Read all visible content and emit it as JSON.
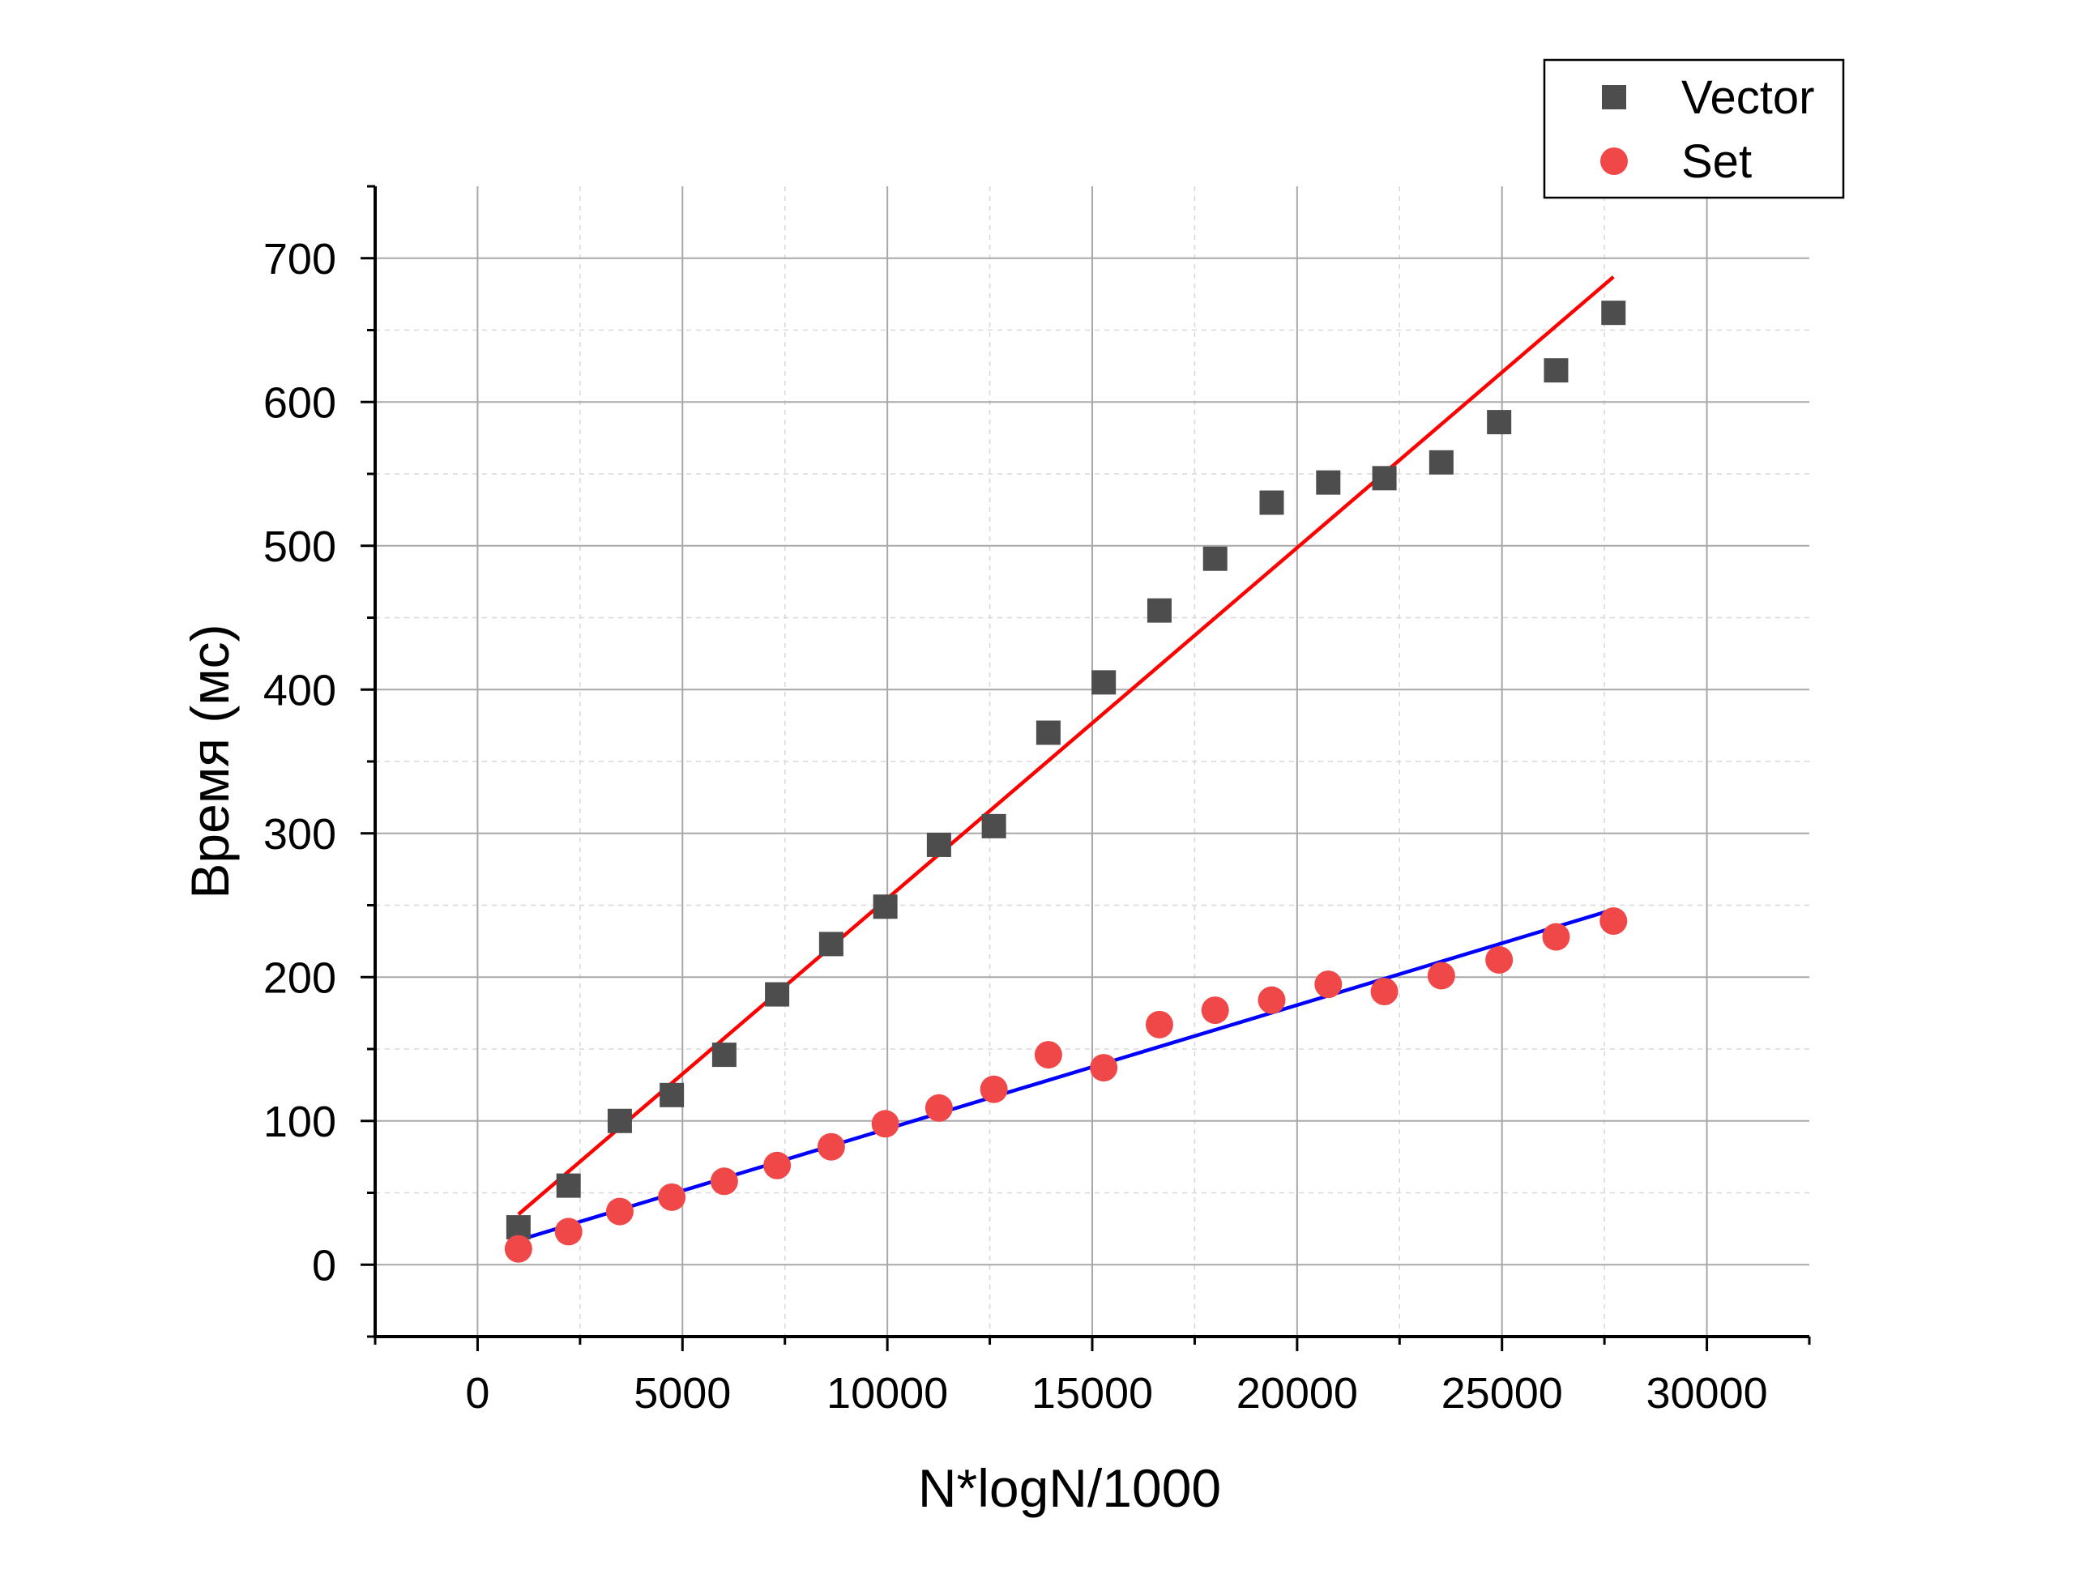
{
  "chart_data": {
    "type": "scatter",
    "xlabel": "N*logN/1000",
    "ylabel": "Время (мс)",
    "xlim": [
      -2500,
      32500
    ],
    "ylim": [
      -50,
      750
    ],
    "xticks": [
      0,
      5000,
      10000,
      15000,
      20000,
      25000,
      30000
    ],
    "yticks": [
      0,
      100,
      200,
      300,
      400,
      500,
      600,
      700
    ],
    "xtick_labels": [
      "0",
      "5000",
      "10000",
      "15000",
      "20000",
      "25000",
      "30000"
    ],
    "ytick_labels": [
      "0",
      "100",
      "200",
      "300",
      "400",
      "500",
      "600",
      "700"
    ],
    "grid": true,
    "legend_position": "top-right",
    "series": [
      {
        "name": "Vector",
        "marker": "square",
        "color": "#4d4d4d",
        "x": [
          997,
          2220,
          3470,
          4740,
          6020,
          7310,
          8630,
          9950,
          11260,
          12600,
          13930,
          15280,
          16640,
          18000,
          19380,
          20760,
          22130,
          23520,
          24930,
          26320,
          27720
        ],
        "y": [
          26,
          55,
          100,
          118,
          146,
          188,
          223,
          249,
          292,
          305,
          370,
          405,
          455,
          491,
          530,
          544,
          547,
          558,
          586,
          622,
          662
        ],
        "fit": {
          "x": [
            997,
            27720
          ],
          "y": [
            35,
            687
          ],
          "color": "#ff0000"
        }
      },
      {
        "name": "Set",
        "marker": "circle",
        "color": "#f04848",
        "x": [
          997,
          2220,
          3470,
          4740,
          6020,
          7310,
          8630,
          9950,
          11260,
          12600,
          13930,
          15280,
          16640,
          18000,
          19380,
          20760,
          22130,
          23520,
          24930,
          26320,
          27720
        ],
        "y": [
          11,
          23,
          37,
          47,
          58,
          69,
          82,
          98,
          109,
          122,
          146,
          137,
          167,
          177,
          184,
          195,
          190,
          201,
          212,
          228,
          239
        ],
        "fit": {
          "x": [
            997,
            27720
          ],
          "y": [
            17,
            247
          ],
          "color": "#0000ff"
        }
      }
    ]
  }
}
